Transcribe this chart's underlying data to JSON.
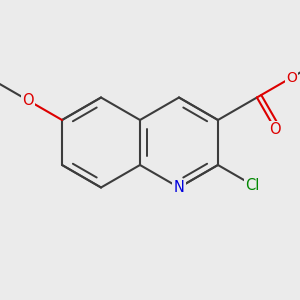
{
  "bg_color": "#ebebeb",
  "bond_color": "#3c3c3c",
  "n_color": "#0000dd",
  "o_color": "#dd0000",
  "cl_color": "#008800",
  "line_width": 1.5,
  "font_size": 10.5,
  "fig_size": [
    3.0,
    3.0
  ],
  "dpi": 100,
  "bl": 0.36,
  "shift": [
    -0.08,
    0.06
  ],
  "xlim": [
    -1.2,
    1.2
  ],
  "ylim": [
    -0.85,
    0.85
  ]
}
